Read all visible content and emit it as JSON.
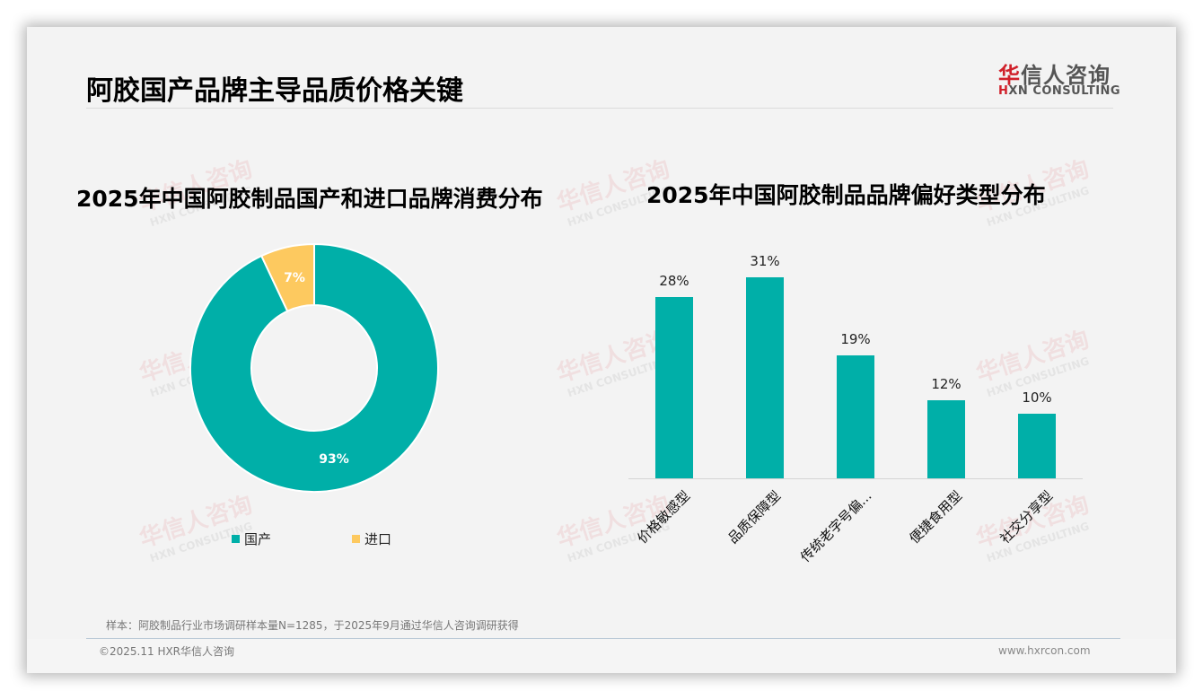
{
  "header": {
    "page_title": "阿胶国产品牌主导品质价格关键",
    "logo": {
      "cn_first": "华",
      "cn_rest": "信人咨询",
      "en_mark": "H",
      "en_rest": "XN CONSULTING"
    }
  },
  "watermark": {
    "cn": "华信人咨询",
    "en": "HXN CONSULTING"
  },
  "colors": {
    "teal": "#00afa8",
    "yellow": "#fdc95f",
    "background": "#f3f3f3",
    "logo_red": "#d0202a"
  },
  "chart_data": [
    {
      "type": "pie",
      "subtype": "donut",
      "title": "2025年中国阿胶制品国产和进口品牌消费分布",
      "categories": [
        "国产",
        "进口"
      ],
      "values": [
        93,
        7
      ],
      "labels": [
        "93%",
        "7%"
      ],
      "colors": [
        "#00afa8",
        "#fdc95f"
      ],
      "legend_position": "bottom"
    },
    {
      "type": "bar",
      "title": "2025年中国阿胶制品品牌偏好类型分布",
      "categories": [
        "价格敏感型",
        "品质保障型",
        "传统老字号偏...",
        "便捷食用型",
        "社交分享型"
      ],
      "values": [
        28,
        31,
        19,
        12,
        10
      ],
      "labels": [
        "28%",
        "31%",
        "19%",
        "12%",
        "10%"
      ],
      "xlabel": "",
      "ylabel": "",
      "ylim": [
        0,
        35
      ],
      "grid": false,
      "color": "#00afa8"
    }
  ],
  "legend": {
    "items": [
      {
        "label": "国产"
      },
      {
        "label": "进口"
      }
    ]
  },
  "footer": {
    "note": "样本：阿胶制品行业市场调研样本量N=1285，于2025年9月通过华信人咨询调研获得",
    "copyright": "©2025.11 HXR华信人咨询",
    "website": "www.hxrcon.com"
  }
}
